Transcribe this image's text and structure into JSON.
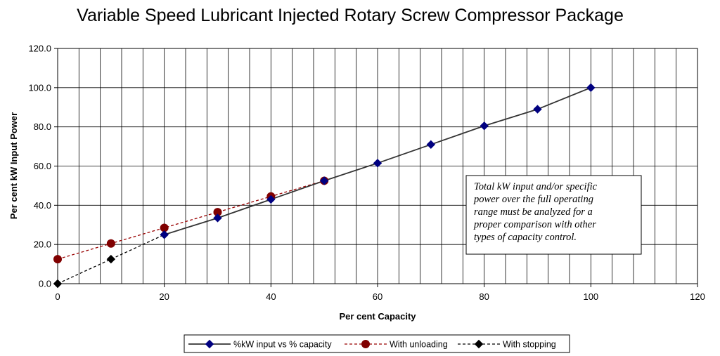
{
  "chart_data": {
    "type": "line",
    "title": "Variable Speed Lubricant Injected Rotary Screw Compressor Package",
    "xlabel": "Per cent Capacity",
    "ylabel": "Per cent kW Input Power",
    "xlim": [
      0,
      120
    ],
    "ylim": [
      0,
      120
    ],
    "x_ticks": [
      "0",
      "20",
      "40",
      "60",
      "80",
      "100",
      "120"
    ],
    "y_ticks": [
      "0.0",
      "20.0",
      "40.0",
      "60.0",
      "80.0",
      "100.0",
      "120.0"
    ],
    "grid": true,
    "legend_position": "bottom",
    "series": [
      {
        "name": "%kW input vs % capacity",
        "color": "#000080",
        "line_color": "#333333",
        "line_style": "solid",
        "marker": "diamond",
        "x": [
          20,
          30,
          40,
          50,
          60,
          70,
          80,
          90,
          100
        ],
        "y": [
          25,
          33.5,
          43,
          52.5,
          61.5,
          71,
          80.5,
          89,
          100
        ]
      },
      {
        "name": "With unloading",
        "color": "#800000",
        "line_color": "#990000",
        "line_style": "dashed",
        "marker": "circle",
        "x": [
          0,
          10,
          20,
          30,
          40,
          50
        ],
        "y": [
          12.5,
          20.5,
          28.5,
          36.5,
          44.5,
          52.5
        ]
      },
      {
        "name": "With stopping",
        "color": "#000000",
        "line_color": "#000000",
        "line_style": "dashed",
        "marker": "diamond",
        "x": [
          0,
          10,
          20
        ],
        "y": [
          0,
          12.5,
          25
        ]
      }
    ],
    "annotation": {
      "lines": [
        "Total kW input and/or specific",
        "power over the full operating",
        "range must be analyzed for a",
        "proper comparison with other",
        "types of capacity control."
      ]
    }
  }
}
